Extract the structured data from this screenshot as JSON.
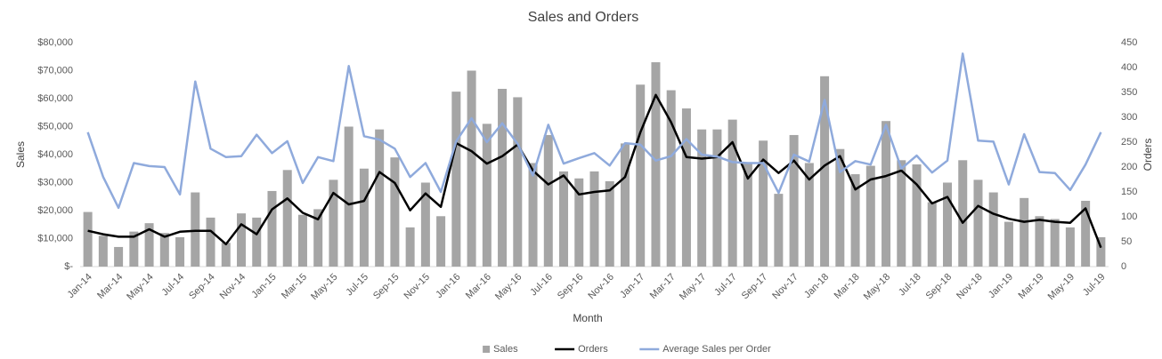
{
  "chart_data": {
    "type": "bar",
    "title": "Sales and Orders",
    "x_label": "Month",
    "y_label": "Sales",
    "y2_label": "Orders",
    "categories": [
      "Jan-14",
      null,
      "Mar-14",
      null,
      "May-14",
      null,
      "Jul-14",
      null,
      "Sep-14",
      null,
      "Nov-14",
      null,
      "Jan-15",
      null,
      "Mar-15",
      null,
      "May-15",
      null,
      "Jul-15",
      null,
      "Sep-15",
      null,
      "Nov-15",
      null,
      "Jan-16",
      null,
      "Mar-16",
      null,
      "May-16",
      null,
      "Jul-16",
      null,
      "Sep-16",
      null,
      "Nov-16",
      null,
      "Jan-17",
      null,
      "Mar-17",
      null,
      "May-17",
      null,
      "Jul-17",
      null,
      "Sep-17",
      null,
      "Nov-17",
      null,
      "Jan-18",
      null,
      "Mar-18",
      null,
      "May-18",
      null,
      "Jul-18",
      null,
      "Sep-18",
      null,
      "Nov-18",
      null,
      "Jan-19",
      null,
      "Mar-19",
      null,
      "May-19",
      null,
      "Jul-19"
    ],
    "series": [
      {
        "name": "Sales",
        "type": "bar",
        "color": "#a5a5a5",
        "values": [
          19500,
          11000,
          7000,
          12500,
          15500,
          12000,
          10500,
          26500,
          17500,
          8500,
          19000,
          17500,
          27000,
          34500,
          18500,
          20500,
          31000,
          50000,
          35000,
          49000,
          39000,
          14000,
          30000,
          18000,
          62500,
          70000,
          51000,
          63500,
          60500,
          37000,
          47000,
          34000,
          31500,
          34000,
          30500,
          44000,
          65000,
          73000,
          63000,
          56500,
          49000,
          49000,
          52500,
          37000,
          45000,
          26000,
          47000,
          37000,
          68000,
          42000,
          33000,
          36000,
          52000,
          38000,
          36500,
          23000,
          30000,
          38000,
          31000,
          26500,
          16000,
          24500,
          18000,
          17000,
          14000,
          23500,
          10500
        ]
      },
      {
        "name": "Orders",
        "type": "line",
        "axis": "y2",
        "color": "#000000",
        "values": [
          72,
          65,
          60,
          60,
          75,
          60,
          70,
          72,
          72,
          45,
          85,
          65,
          115,
          137,
          108,
          95,
          148,
          125,
          132,
          190,
          168,
          113,
          147,
          120,
          248,
          232,
          207,
          222,
          245,
          193,
          165,
          183,
          145,
          150,
          153,
          180,
          270,
          345,
          290,
          220,
          217,
          220,
          250,
          177,
          215,
          188,
          213,
          175,
          203,
          222,
          155,
          175,
          182,
          193,
          165,
          127,
          140,
          88,
          122,
          106,
          96,
          90,
          94,
          90,
          88,
          117,
          38
        ]
      },
      {
        "name": "Average Sales per Order",
        "type": "line",
        "axis": "y2",
        "color": "#8faadc",
        "values": [
          270,
          180,
          118,
          208,
          202,
          200,
          145,
          372,
          237,
          220,
          222,
          265,
          228,
          252,
          168,
          220,
          212,
          403,
          262,
          255,
          237,
          180,
          208,
          150,
          252,
          298,
          250,
          288,
          247,
          183,
          285,
          207,
          218,
          228,
          203,
          248,
          245,
          213,
          222,
          256,
          225,
          221,
          210,
          208,
          208,
          148,
          225,
          211,
          335,
          190,
          212,
          205,
          285,
          197,
          223,
          189,
          213,
          428,
          253,
          251,
          165,
          266,
          190,
          188,
          154,
          205,
          270
        ]
      }
    ],
    "ylim": [
      0,
      80000
    ],
    "yticks": [
      {
        "value": 0,
        "label": "$-"
      },
      {
        "value": 10000,
        "label": "$10,000"
      },
      {
        "value": 20000,
        "label": "$20,000"
      },
      {
        "value": 30000,
        "label": "$30,000"
      },
      {
        "value": 40000,
        "label": "$40,000"
      },
      {
        "value": 50000,
        "label": "$50,000"
      },
      {
        "value": 60000,
        "label": "$60,000"
      },
      {
        "value": 70000,
        "label": "$70,000"
      },
      {
        "value": 80000,
        "label": "$80,000"
      }
    ],
    "y2lim": [
      0,
      450
    ],
    "y2ticks": [
      0,
      50,
      100,
      150,
      200,
      250,
      300,
      350,
      400,
      450
    ],
    "grid": false,
    "legend": "bottom"
  }
}
